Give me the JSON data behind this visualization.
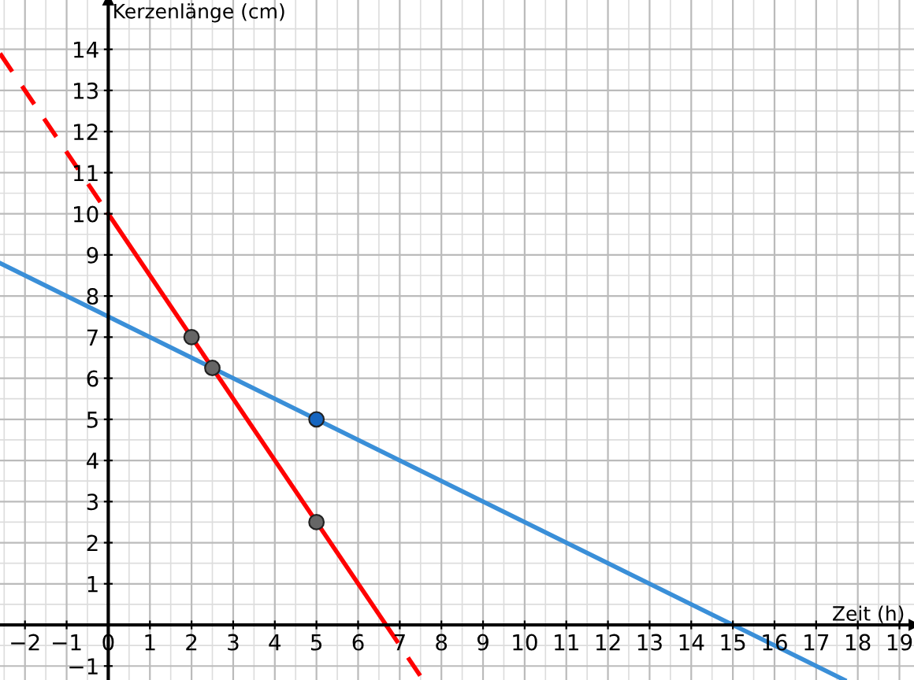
{
  "chart_data": {
    "type": "line",
    "xlabel": "Zeit (h)",
    "ylabel": "Kerzenlänge (cm)",
    "xlim": [
      -2.6,
      19.35
    ],
    "ylim": [
      -1.34,
      15.2
    ],
    "xticks": [
      -2,
      -1,
      0,
      1,
      2,
      3,
      4,
      5,
      6,
      7,
      8,
      9,
      10,
      11,
      12,
      13,
      14,
      15,
      16,
      17,
      18,
      19
    ],
    "yticks": [
      -1,
      {
        "value": 0,
        "label": null
      },
      1,
      2,
      3,
      4,
      5,
      6,
      7,
      8,
      9,
      10,
      11,
      12,
      13,
      14
    ],
    "grid": true,
    "legend": false,
    "series": [
      {
        "type": "line",
        "color": "#ff0000",
        "line_style": "dashed",
        "x": [
          -2.6,
          0
        ],
        "values": [
          13.9,
          10
        ]
      },
      {
        "type": "line",
        "color": "#ff0000",
        "line_style": "solid",
        "x": [
          0,
          6.67
        ],
        "values": [
          10,
          0
        ]
      },
      {
        "type": "line",
        "color": "#ff0000",
        "line_style": "dashed",
        "x": [
          6.67,
          7.56
        ],
        "values": [
          0,
          -1.34
        ]
      },
      {
        "type": "line",
        "color": "#3a8fd8",
        "line_style": "solid",
        "x": [
          -2.6,
          17.68
        ],
        "values": [
          8.8,
          -1.34
        ]
      },
      {
        "type": "scatter",
        "color": "#666666",
        "marker": "circle",
        "x": [
          2,
          2.5,
          5
        ],
        "values": [
          7,
          6.25,
          2.5
        ]
      },
      {
        "type": "scatter",
        "color": "#1565c0",
        "marker": "circle",
        "x": [
          5
        ],
        "values": [
          5
        ]
      }
    ]
  }
}
